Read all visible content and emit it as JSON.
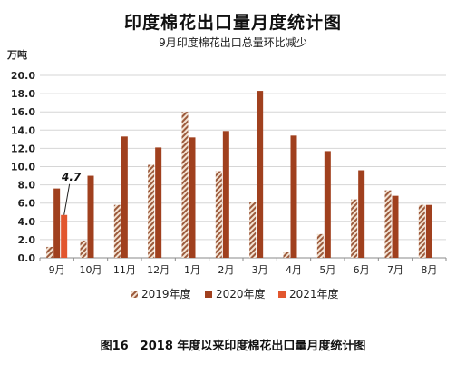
{
  "chart_data": {
    "type": "bar",
    "title": "印度棉花出口量月度统计图",
    "subtitle": "9月印度棉花出口总量环比减少",
    "ylabel": "万吨",
    "xlabel": "",
    "ylim": [
      0,
      20
    ],
    "yticks": [
      "0.0",
      "2.0",
      "4.0",
      "6.0",
      "8.0",
      "10.0",
      "12.0",
      "14.0",
      "16.0",
      "18.0",
      "20.0"
    ],
    "grid": true,
    "legend_position": "bottom",
    "categories": [
      "9月",
      "10月",
      "11月",
      "12月",
      "1月",
      "2月",
      "3月",
      "4月",
      "5月",
      "6月",
      "7月",
      "8月"
    ],
    "series": [
      {
        "name": "2019年度",
        "pattern": "hatch",
        "color": "#9c5a3c",
        "values": [
          1.2,
          1.9,
          5.8,
          10.2,
          16.0,
          9.5,
          6.1,
          0.6,
          2.6,
          6.4,
          7.4,
          5.8
        ]
      },
      {
        "name": "2020年度",
        "pattern": "solid",
        "color": "#a0401e",
        "values": [
          7.6,
          9.0,
          13.3,
          12.1,
          13.2,
          13.9,
          18.3,
          13.4,
          11.7,
          9.6,
          6.8,
          5.8
        ]
      },
      {
        "name": "2021年度",
        "pattern": "solid",
        "color": "#e2562e",
        "values": [
          4.7,
          null,
          null,
          null,
          null,
          null,
          null,
          null,
          null,
          null,
          null,
          null
        ]
      }
    ],
    "annotations": [
      {
        "text": "4.7",
        "series": "2021年度",
        "category": "9月"
      }
    ]
  },
  "caption": "图16　2018 年度以来印度棉花出口量月度统计图"
}
